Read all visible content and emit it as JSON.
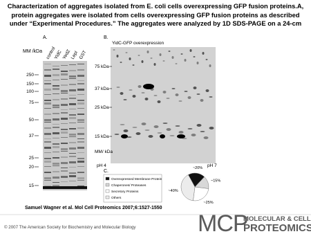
{
  "header": {
    "title": "Characterization of aggregates isolated from E. coli cells overexpressing GFP fusion proteins.A, protein aggregates were isolated from cells overexpressing GFP fusion proteins as described under “Experimental Procedures.” The aggregates were analyzed by 1D SDS-PAGE on a 24-cm"
  },
  "panel_a": {
    "label": "A.",
    "mw_title": "MM /kDa",
    "lanes": [
      "control",
      "YidC",
      "YedZ",
      "LepI",
      "GST"
    ],
    "markers": [
      "250",
      "150",
      "100",
      "75",
      "50",
      "37",
      "25",
      "20",
      "15"
    ]
  },
  "panel_b": {
    "label": "B.",
    "title": "YidC-GFP overexpression",
    "markers": [
      "75 kDa",
      "37 kDa",
      "25 kDa",
      "15 kDa"
    ],
    "mm_label": "MM/ kDa",
    "ph_left": "pH 4",
    "ph_right": "pH 7"
  },
  "panel_c": {
    "label": "C.",
    "type": "pie",
    "categories": [
      "Overexpressed Membrane Protein",
      "Chaperones/ Proteases",
      "Secretory Proteins",
      "Others"
    ],
    "values": [
      20,
      15,
      25,
      40
    ],
    "value_labels": [
      "~20%",
      "~15%",
      "~25%",
      "~40%"
    ],
    "colors": [
      "#111111",
      "#d8d8d8",
      "#ffffff",
      "#ececec"
    ]
  },
  "citation": "Samuel Wagner et al. Mol Cell Proteomics 2007;6:1527-1550",
  "copyright": "© 2007 The American Society for Biochemistry and Molecular Biology",
  "logo": {
    "mark": "MCP",
    "line1": "MOLECULAR & CELLULAR",
    "line2": "PROTEOMICS"
  }
}
